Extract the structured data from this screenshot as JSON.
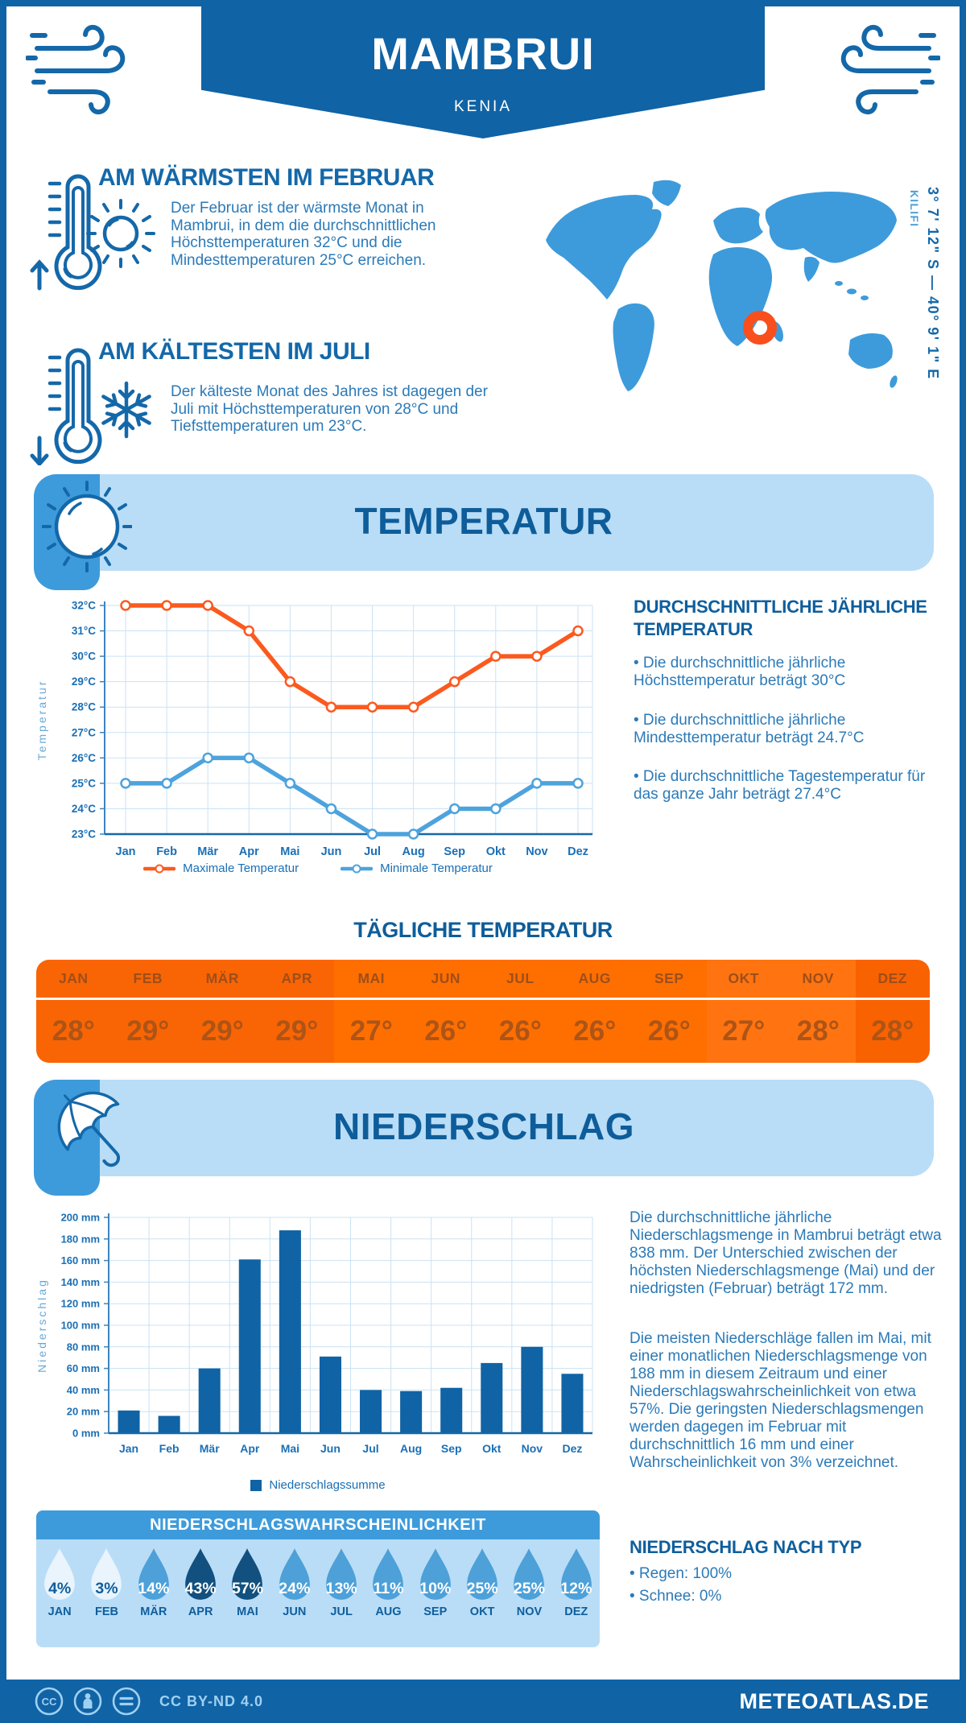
{
  "colors": {
    "dark_blue": "#1063A5",
    "heading_blue": "#0E5D9A",
    "icon_blue": "#1468A9",
    "mid_blue": "#3D9BDB",
    "light_blue": "#B9DDF7",
    "body_blue": "#2B7AB8",
    "tick_blue": "#1A6FB5",
    "grid_blue": "#CBE2F3",
    "axis_blue": "#3D85C0",
    "orange": "#FB5A1F",
    "marker_orange": "#F94F1D"
  },
  "header": {
    "title": "MAMBRUI",
    "subtitle": "KENIA"
  },
  "highlights": [
    {
      "title": "AM WÄRMSTEN IM FEBRUAR",
      "text": "Der Februar ist der wärmste Monat in Mambrui, in dem die durchschnittlichen Höchsttemperaturen 32°C und die Mindesttemperaturen 25°C erreichen."
    },
    {
      "title": "AM KÄLTESTEN IM JULI",
      "text": "Der kälteste Monat des Jahres ist dagegen der Juli mit Höchsttemperaturen von 28°C und Tiefsttemperaturen um 23°C."
    }
  ],
  "map": {
    "coordinates": "3° 7' 12\" S — 40° 9' 1\" E",
    "region": "KILIFI",
    "land_color": "#3D9BDB",
    "marker_color": "#F94F1D"
  },
  "sections": {
    "temperature": {
      "title": "TEMPERATUR"
    },
    "precipitation": {
      "title": "NIEDERSCHLAG"
    }
  },
  "temperature": {
    "stats_title": "DURCHSCHNITTLICHE JÄHRLICHE TEMPERATUR",
    "stats": [
      "• Die durchschnittliche jährliche Höchsttemperatur beträgt 30°C",
      "• Die durchschnittliche jährliche Mindesttemperatur beträgt 24.7°C",
      "• Die durchschnittliche Tagestemperatur für das ganze Jahr beträgt 27.4°C"
    ],
    "daily_title": "TÄGLICHE TEMPERATUR",
    "daily": {
      "months": [
        "JAN",
        "FEB",
        "MÄR",
        "APR",
        "MAI",
        "JUN",
        "JUL",
        "AUG",
        "SEP",
        "OKT",
        "NOV",
        "DEZ"
      ],
      "values": [
        "28°",
        "29°",
        "29°",
        "29°",
        "27°",
        "26°",
        "26°",
        "26°",
        "26°",
        "27°",
        "28°",
        "28°"
      ],
      "cell_colors": [
        "#F96504",
        "#F96504",
        "#F96504",
        "#F96504",
        "#FF6F00",
        "#FF6F00",
        "#FF6F00",
        "#FF6F00",
        "#FF6F00",
        "#FF7410",
        "#FF7410",
        "#F96200"
      ]
    }
  },
  "precipitation": {
    "paragraphs": [
      "Die durchschnittliche jährliche Niederschlagsmenge in Mambrui beträgt etwa 838 mm. Der Unterschied zwischen der höchsten Niederschlagsmenge (Mai) und der niedrigsten (Februar) beträgt 172 mm.",
      "Die meisten Niederschläge fallen im Mai, mit einer monatlichen Niederschlagsmenge von 188 mm in diesem Zeitraum und einer Niederschlagswahrscheinlichkeit von etwa 57%. Die geringsten Niederschlagsmengen werden dagegen im Februar mit durchschnittlich 16 mm und einer Wahrscheinlichkeit von 3% verzeichnet."
    ],
    "type_title": "NIEDERSCHLAG NACH TYP",
    "type_stats": [
      "• Regen: 100%",
      "• Schnee: 0%"
    ],
    "probability": {
      "title": "NIEDERSCHLAGSWAHRSCHEINLICHKEIT",
      "months": [
        "JAN",
        "FEB",
        "MÄR",
        "APR",
        "MAI",
        "JUN",
        "JUL",
        "AUG",
        "SEP",
        "OKT",
        "NOV",
        "DEZ"
      ],
      "values": [
        "4%",
        "3%",
        "14%",
        "43%",
        "57%",
        "24%",
        "13%",
        "11%",
        "10%",
        "25%",
        "25%",
        "12%"
      ],
      "levels": [
        "pale",
        "pale",
        "mid",
        "dark",
        "dark",
        "mid",
        "mid",
        "mid",
        "mid",
        "mid",
        "mid",
        "mid"
      ],
      "drop_colors": {
        "pale": "#E9F4FC",
        "mid": "#4DA0D8",
        "dark": "#11507F"
      },
      "text_colors": {
        "pale": "#0F5E9C",
        "mid": "#FFFFFF",
        "dark": "#FFFFFF"
      }
    }
  },
  "chart_data": [
    {
      "type": "line",
      "categories": [
        "Jan",
        "Feb",
        "Mär",
        "Apr",
        "Mai",
        "Jun",
        "Jul",
        "Aug",
        "Sep",
        "Okt",
        "Nov",
        "Dez"
      ],
      "series": [
        {
          "name": "Maximale Temperatur",
          "color": "#FB5A1F",
          "values": [
            32,
            32,
            32,
            31,
            29,
            28,
            28,
            28,
            29,
            30,
            30,
            31
          ]
        },
        {
          "name": "Minimale Temperatur",
          "color": "#4DA3DD",
          "values": [
            25,
            25,
            26,
            26,
            25,
            24,
            23,
            23,
            24,
            24,
            25,
            25
          ]
        }
      ],
      "xlabel": "",
      "ylabel": "Temperatur",
      "ylim": [
        23,
        32
      ],
      "ytick_step": 1,
      "ytick_suffix": "°C",
      "grid": true,
      "legend_position": "bottom"
    },
    {
      "type": "bar",
      "categories": [
        "Jan",
        "Feb",
        "Mär",
        "Apr",
        "Mai",
        "Jun",
        "Jul",
        "Aug",
        "Sep",
        "Okt",
        "Nov",
        "Dez"
      ],
      "series": [
        {
          "name": "Niederschlagssumme",
          "color": "#1063A5",
          "values": [
            21,
            16,
            60,
            161,
            188,
            71,
            40,
            39,
            42,
            65,
            80,
            55
          ]
        }
      ],
      "xlabel": "",
      "ylabel": "Niederschlag",
      "ylim": [
        0,
        200
      ],
      "ytick_step": 20,
      "ytick_suffix": " mm",
      "grid": true,
      "legend_position": "bottom"
    }
  ],
  "footer": {
    "license": "CC BY-ND 4.0",
    "site": "METEOATLAS.DE"
  }
}
